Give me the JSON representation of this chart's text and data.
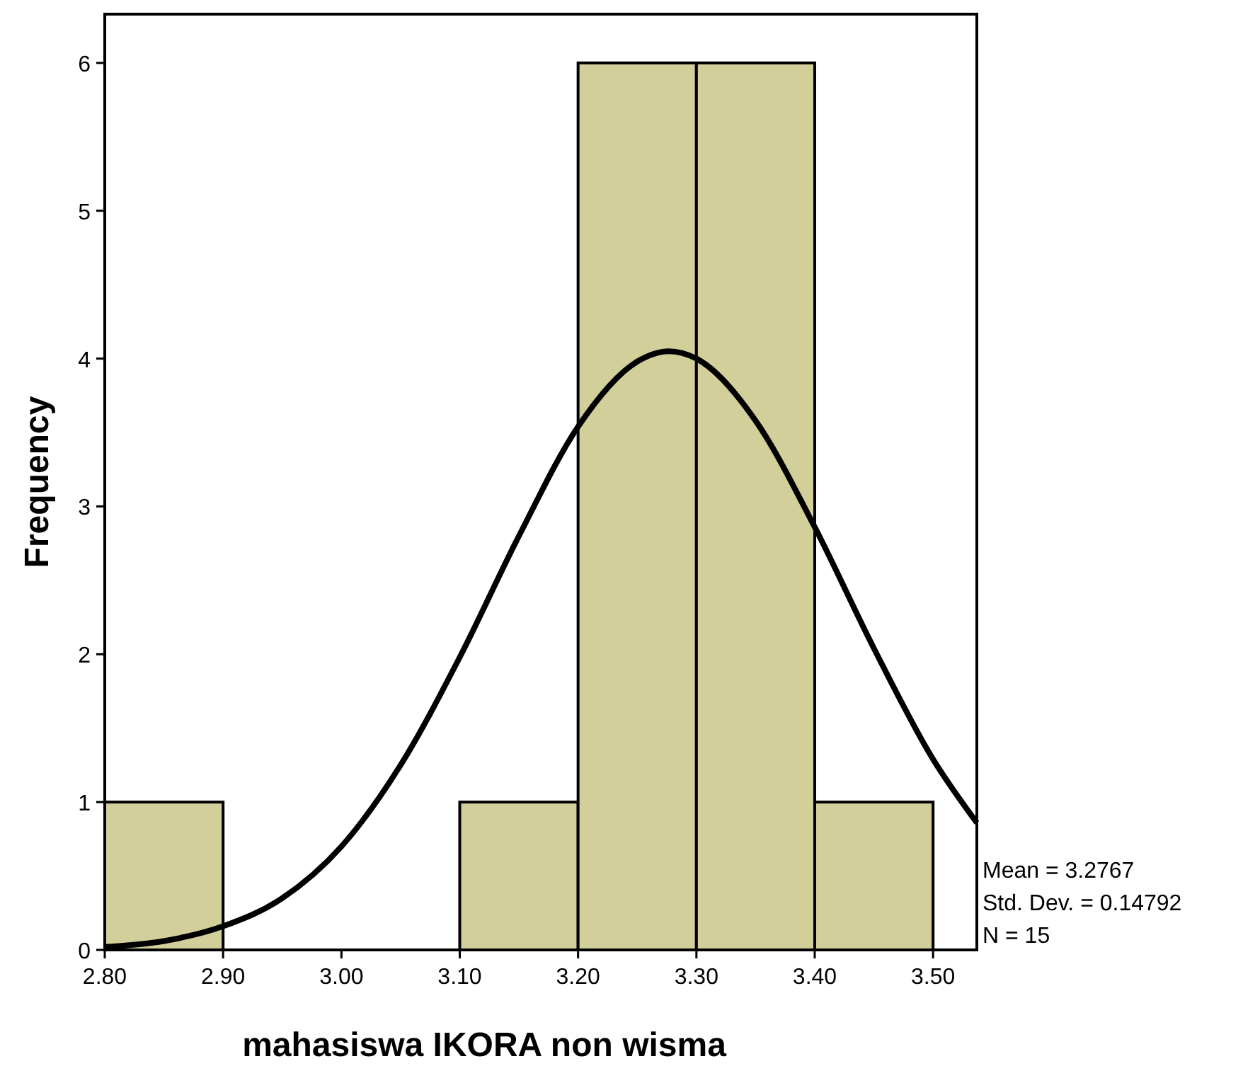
{
  "chart_data": {
    "type": "histogram",
    "xlabel": "mahasiswa IKORA non wisma",
    "ylabel": "Frequency",
    "bins": [
      2.8,
      2.9,
      3.0,
      3.1,
      3.2,
      3.3,
      3.4,
      3.5
    ],
    "values": [
      1,
      0,
      0,
      1,
      6,
      6,
      1
    ],
    "color": "#d3cf9a",
    "series": [
      {
        "type": "line",
        "color": "#000000",
        "x": [
          2.8,
          2.85,
          2.9,
          2.95,
          3.0,
          3.05,
          3.1,
          3.15,
          3.2,
          3.25,
          3.2767,
          3.3,
          3.35,
          3.4,
          3.45,
          3.5,
          3.537
        ],
        "values": [
          0.02,
          0.06,
          0.16,
          0.35,
          0.7,
          1.25,
          1.98,
          2.8,
          3.54,
          3.98,
          4.05,
          4.0,
          3.58,
          2.86,
          2.04,
          1.29,
          0.86
        ]
      }
    ],
    "xlim": [
      2.8,
      3.537
    ],
    "ylim": [
      0,
      6.33
    ],
    "xticks": [
      {
        "value": 2.8,
        "label": "2.80"
      },
      {
        "value": 2.9,
        "label": "2.90"
      },
      {
        "value": 3.0,
        "label": "3.00"
      },
      {
        "value": 3.1,
        "label": "3.10"
      },
      {
        "value": 3.2,
        "label": "3.20"
      },
      {
        "value": 3.3,
        "label": "3.30"
      },
      {
        "value": 3.4,
        "label": "3.40"
      },
      {
        "value": 3.5,
        "label": "3.50"
      }
    ],
    "yticks": [
      0,
      1,
      2,
      3,
      4,
      5,
      6
    ],
    "annotations": [
      "Mean = 3.2767",
      "Std. Dev. = 0.14792",
      "N = 15"
    ]
  }
}
